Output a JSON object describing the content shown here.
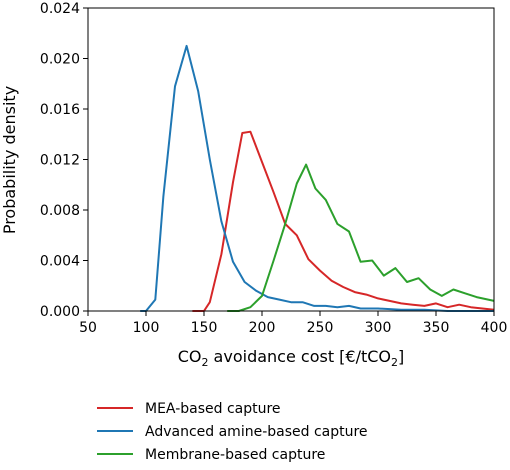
{
  "chart_data": {
    "type": "line",
    "xlabel": "CO₂ avoidance cost [€/tCO₂]",
    "xlabel_parts": {
      "a": "CO",
      "a_sub": "2",
      "b": " avoidance cost [€/tCO",
      "b_sub": "2",
      "c": "]"
    },
    "ylabel": "Probability density",
    "xlim": [
      50,
      400
    ],
    "ylim": [
      0,
      0.024
    ],
    "x_ticks": [
      50,
      100,
      150,
      200,
      250,
      300,
      350,
      400
    ],
    "x_tick_labels": [
      "50",
      "100",
      "150",
      "200",
      "250",
      "300",
      "350",
      "400"
    ],
    "y_ticks": [
      0,
      0.004,
      0.008,
      0.012,
      0.016,
      0.02,
      0.024
    ],
    "y_tick_labels": [
      "0.000",
      "0.004",
      "0.008",
      "0.012",
      "0.016",
      "0.020",
      "0.024"
    ],
    "grid": false,
    "legend_position": "below",
    "series": [
      {
        "name": "MEA-based capture",
        "color": "#d62728",
        "x": [
          140,
          150,
          155,
          165,
          175,
          183,
          190,
          200,
          210,
          220,
          230,
          240,
          250,
          260,
          270,
          280,
          290,
          300,
          310,
          320,
          330,
          340,
          350,
          360,
          370,
          380,
          390,
          400
        ],
        "y": [
          0,
          0,
          0.0007,
          0.0045,
          0.0102,
          0.0141,
          0.0142,
          0.0118,
          0.0094,
          0.0069,
          0.006,
          0.0041,
          0.0032,
          0.0024,
          0.0019,
          0.0015,
          0.0013,
          0.001,
          0.0008,
          0.0006,
          0.0005,
          0.0004,
          0.0006,
          0.0003,
          0.0005,
          0.0003,
          0.0002,
          0.0001
        ]
      },
      {
        "name": "Advanced amine-based capture",
        "color": "#1f77b4",
        "x": [
          95,
          100,
          108,
          115,
          125,
          135,
          145,
          155,
          165,
          175,
          185,
          195,
          205,
          215,
          225,
          235,
          245,
          255,
          265,
          275,
          285,
          300,
          320,
          340,
          360,
          380,
          400
        ],
        "y": [
          0,
          0,
          0.0009,
          0.0091,
          0.0178,
          0.021,
          0.0174,
          0.012,
          0.0071,
          0.0039,
          0.0023,
          0.0016,
          0.0011,
          0.0009,
          0.0007,
          0.0007,
          0.0004,
          0.0004,
          0.0003,
          0.0004,
          0.0002,
          0.0002,
          0.0001,
          0.0001,
          0.0,
          0.0,
          0.0
        ]
      },
      {
        "name": "Membrane-based capture",
        "color": "#2ca02c",
        "x": [
          170,
          180,
          190,
          200,
          210,
          220,
          230,
          238,
          246,
          255,
          265,
          275,
          285,
          295,
          305,
          315,
          325,
          335,
          345,
          355,
          365,
          375,
          385,
          395,
          400
        ],
        "y": [
          0,
          0,
          0.0003,
          0.0012,
          0.004,
          0.0069,
          0.0101,
          0.0116,
          0.0097,
          0.0088,
          0.0069,
          0.0063,
          0.0039,
          0.004,
          0.0028,
          0.0034,
          0.0023,
          0.0026,
          0.0017,
          0.0012,
          0.0017,
          0.0014,
          0.0011,
          0.0009,
          0.0008
        ]
      }
    ]
  }
}
